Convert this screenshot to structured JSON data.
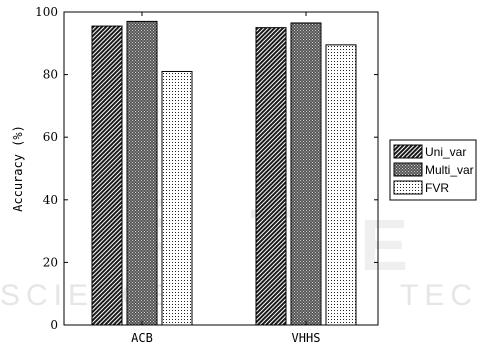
{
  "chart_data": {
    "type": "bar",
    "categories": [
      "ACB",
      "VHHS"
    ],
    "series": [
      {
        "name": "Uni_var",
        "values": [
          95.5,
          95.0
        ],
        "pattern": "diag-dense"
      },
      {
        "name": "Multi_var",
        "values": [
          97.0,
          96.5
        ],
        "pattern": "cross"
      },
      {
        "name": "FVR",
        "values": [
          81.0,
          89.5
        ],
        "pattern": "dots"
      }
    ],
    "title": "",
    "xlabel": "",
    "ylabel": "Accuracy (%)",
    "ylim": [
      0,
      100
    ],
    "yticks": [
      0,
      20,
      40,
      60,
      80,
      100
    ],
    "grid": false,
    "legend": "right"
  }
}
